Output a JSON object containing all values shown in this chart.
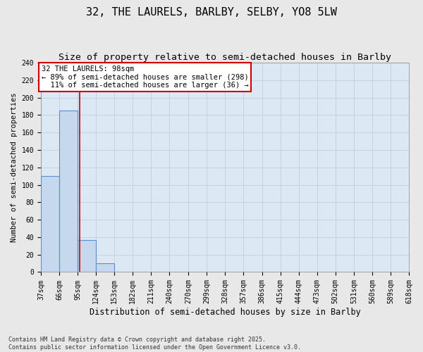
{
  "title1": "32, THE LAURELS, BARLBY, SELBY, YO8 5LW",
  "title2": "Size of property relative to semi-detached houses in Barlby",
  "xlabel": "Distribution of semi-detached houses by size in Barlby",
  "ylabel": "Number of semi-detached properties",
  "bin_edges": [
    37,
    66,
    95,
    124,
    153,
    182,
    211,
    240,
    270,
    299,
    328,
    357,
    386,
    415,
    444,
    473,
    502,
    531,
    560,
    589,
    618
  ],
  "bar_heights": [
    110,
    185,
    37,
    10,
    0,
    0,
    0,
    0,
    0,
    0,
    0,
    0,
    0,
    0,
    0,
    0,
    0,
    0,
    0,
    0
  ],
  "bar_color": "#c5d8ee",
  "bar_edgecolor": "#5b8fc9",
  "grid_color": "#c0d0e0",
  "background_color": "#dce8f4",
  "fig_background": "#e8e8e8",
  "property_size": 98,
  "property_label": "32 THE LAURELS: 98sqm",
  "pct_smaller": 89,
  "count_smaller": 298,
  "pct_larger": 11,
  "count_larger": 36,
  "annotation_box_edgecolor": "#cc0000",
  "vline_color": "#cc0000",
  "ylim": [
    0,
    240
  ],
  "yticks": [
    0,
    20,
    40,
    60,
    80,
    100,
    120,
    140,
    160,
    180,
    200,
    220,
    240
  ],
  "footnote": "Contains HM Land Registry data © Crown copyright and database right 2025.\nContains public sector information licensed under the Open Government Licence v3.0.",
  "title1_fontsize": 11,
  "title2_fontsize": 9.5,
  "xlabel_fontsize": 8.5,
  "ylabel_fontsize": 7.5,
  "tick_fontsize": 7,
  "annot_fontsize": 7.5,
  "footnote_fontsize": 6
}
